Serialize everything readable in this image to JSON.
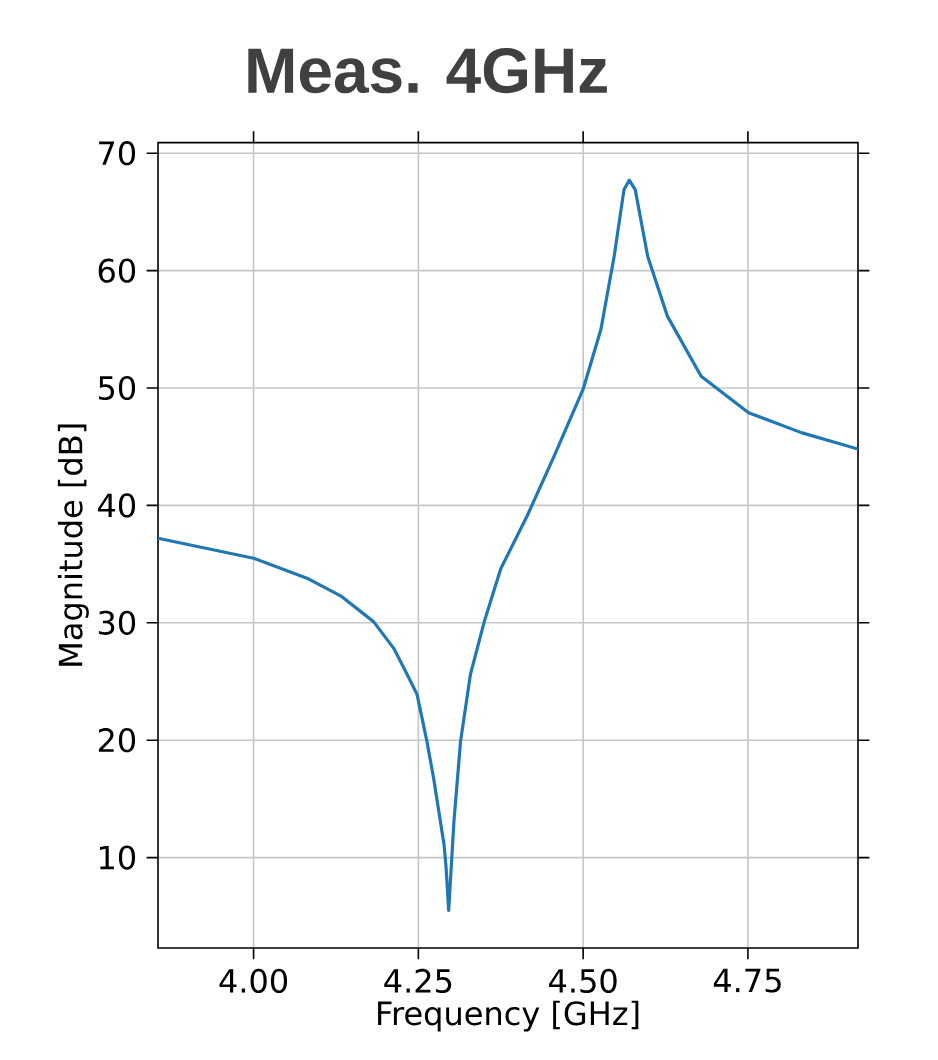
{
  "chart_data": {
    "type": "line",
    "title": "Meas. 4GHz",
    "xlabel": "Frequency [GHz]",
    "ylabel": "Magnitude [dB]",
    "x": [
      3.855,
      4.0,
      4.081,
      4.132,
      4.182,
      4.213,
      4.233,
      4.248,
      4.263,
      4.273,
      4.289,
      4.292,
      4.296,
      4.304,
      4.314,
      4.329,
      4.35,
      4.375,
      4.415,
      4.456,
      4.5,
      4.527,
      4.547,
      4.562,
      4.57,
      4.579,
      4.598,
      4.628,
      4.679,
      4.751,
      4.831,
      4.917
    ],
    "series": [
      {
        "color": "#1f77b4",
        "values": [
          37.2,
          35.5,
          33.8,
          32.3,
          30.1,
          27.8,
          25.6,
          23.9,
          19.9,
          16.8,
          11.1,
          9.2,
          5.5,
          13.1,
          19.9,
          25.6,
          30.1,
          34.6,
          39.1,
          44.2,
          49.9,
          55.0,
          61.2,
          66.9,
          67.7,
          66.9,
          61.2,
          56.1,
          51.0,
          47.9,
          46.2,
          44.8
        ]
      }
    ],
    "xlim": [
      3.855,
      4.917
    ],
    "ylim": [
      2.3,
      70.9
    ],
    "xticks": [
      {
        "value": 4.0,
        "label": "4.00"
      },
      {
        "value": 4.25,
        "label": "4.25"
      },
      {
        "value": 4.5,
        "label": "4.50"
      },
      {
        "value": 4.75,
        "label": "4.75"
      }
    ],
    "yticks": [
      10,
      20,
      30,
      40,
      50,
      60,
      70
    ],
    "grid": true
  }
}
